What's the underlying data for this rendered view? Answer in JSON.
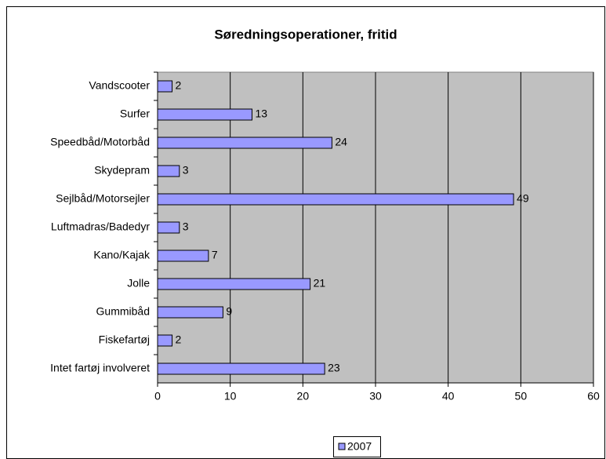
{
  "chart_data": {
    "type": "bar",
    "orientation": "horizontal",
    "title": "Søredningsoperationer, fritid",
    "categories": [
      "Vandscooter",
      "Surfer",
      "Speedbåd/Motorbåd",
      "Skydepram",
      "Sejlbåd/Motorsejler",
      "Luftmadras/Badedyr",
      "Kano/Kajak",
      "Jolle",
      "Gummibåd",
      "Fiskefartøj",
      "Intet fartøj involveret"
    ],
    "series": [
      {
        "name": "2007",
        "color": "#9999ff",
        "values": [
          2,
          13,
          24,
          3,
          49,
          3,
          7,
          21,
          9,
          2,
          23
        ]
      }
    ],
    "xlim": [
      0,
      60
    ],
    "xticks": [
      0,
      10,
      20,
      30,
      40,
      50,
      60
    ],
    "grid": true,
    "plot_background": "#c0c0c0",
    "legend": "bottom"
  }
}
